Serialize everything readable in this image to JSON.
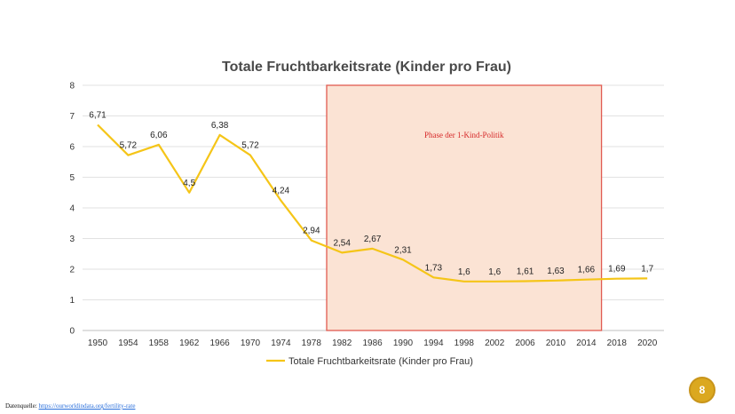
{
  "chart_data": {
    "type": "line",
    "title": "Totale Fruchtbarkeitsrate (Kinder pro Frau)",
    "x": [
      "1950",
      "1954",
      "1958",
      "1962",
      "1966",
      "1970",
      "1974",
      "1978",
      "1982",
      "1986",
      "1990",
      "1994",
      "1998",
      "2002",
      "2006",
      "2010",
      "2014",
      "2018",
      "2020"
    ],
    "yticks": [
      "0",
      "1",
      "2",
      "3",
      "4",
      "5",
      "6",
      "7",
      "8"
    ],
    "ylim": [
      0,
      8
    ],
    "grid": true,
    "series": [
      {
        "name": "Totale Fruchtbarkeitsrate (Kinder pro Frau)",
        "color": "#f5c518",
        "values": [
          6.71,
          5.72,
          6.06,
          4.5,
          6.38,
          5.72,
          4.24,
          2.94,
          2.54,
          2.67,
          2.31,
          1.73,
          1.6,
          1.6,
          1.61,
          1.63,
          1.66,
          1.69,
          1.7
        ],
        "labels": [
          "6,71",
          "5,72",
          "6,06",
          "4,5",
          "6,38",
          "5,72",
          "4,24",
          "2,94",
          "2,54",
          "2,67",
          "2,31",
          "1,73",
          "1,6",
          "1,6",
          "1,61",
          "1,63",
          "1,66",
          "1,69",
          "1,7"
        ]
      }
    ],
    "highlight": {
      "label": "Phase der 1-Kind-Politik",
      "from_year": 1980,
      "to_year": 2016,
      "fill": "#fbe3d4",
      "border": "#e05a50"
    },
    "legend_position": "bottom"
  },
  "footer": {
    "source_prefix": "Datenquelle:",
    "source_link": "https://ourworldindata.org/fertility-rate"
  },
  "page_number": "8",
  "colors": {
    "line": "#f5c518",
    "badge": "#dba81f",
    "grid": "#e2e2e2",
    "axis": "#bfbfbf"
  }
}
